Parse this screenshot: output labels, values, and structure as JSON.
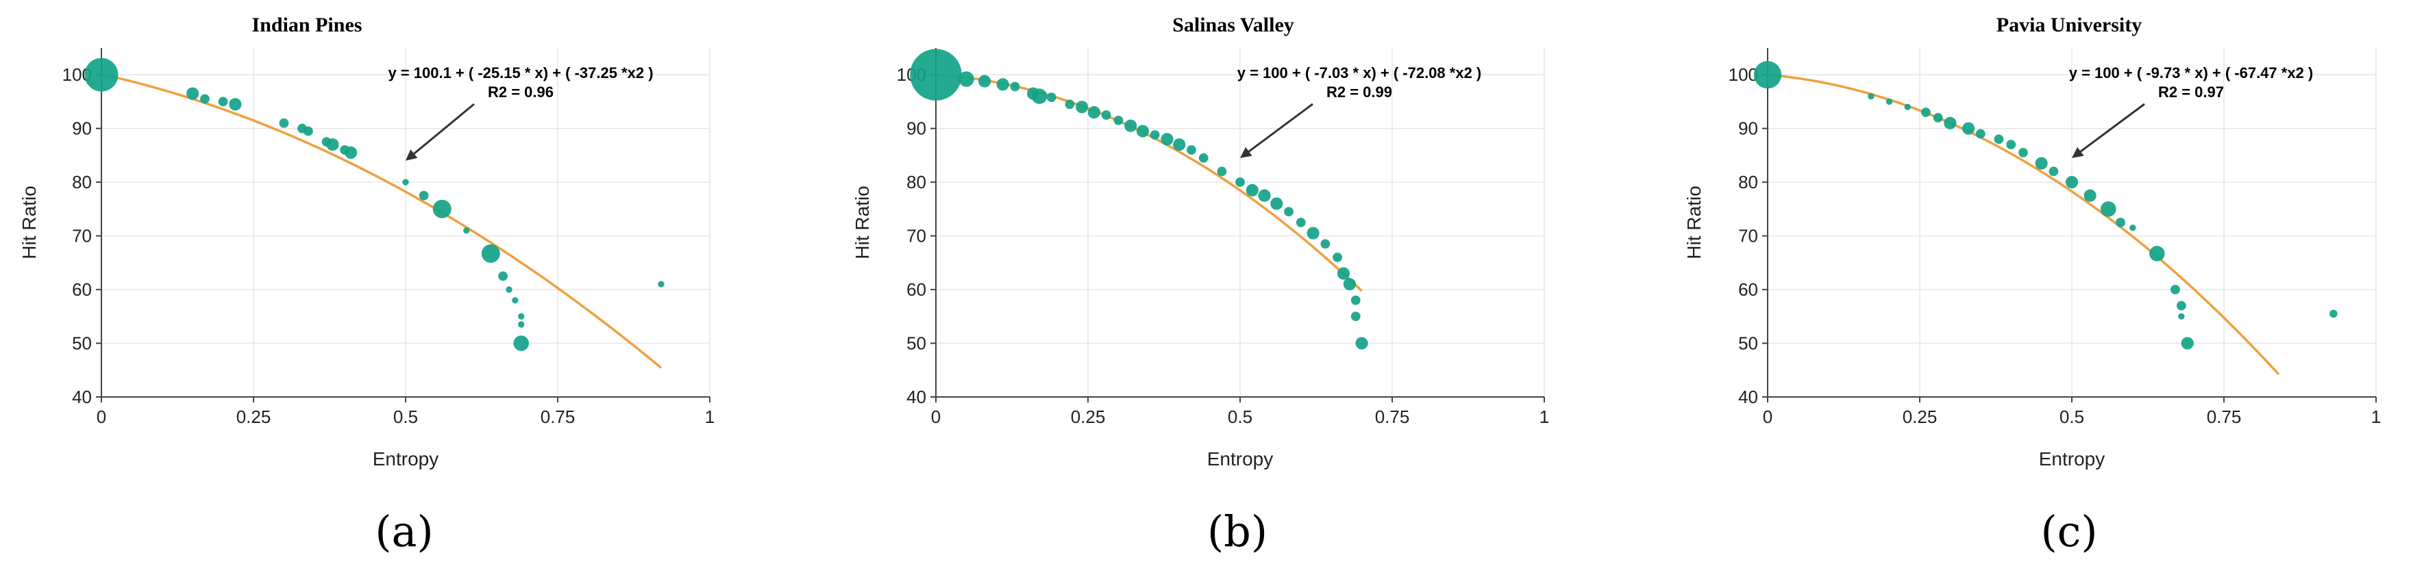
{
  "colors": {
    "point": "#12a388",
    "fit": "#f0a040",
    "grid": "#e6e6e6",
    "axis": "#444444",
    "arrow": "#333333"
  },
  "chart_data": [
    {
      "type": "scatter",
      "panel_label": "(a)",
      "title": "Indian Pines",
      "equation": "y = 100.1 + ( -25.15 * x) + ( -37.25 *x2 )",
      "r2": "R2 = 0.96",
      "xlabel": "Entropy",
      "ylabel": "Hit Ratio",
      "xlim": [
        0,
        1
      ],
      "ylim": [
        40,
        105
      ],
      "xticks": [
        0,
        0.25,
        0.5,
        0.75,
        1
      ],
      "xtick_labels": [
        "0",
        "0.25",
        "0.5",
        "0.75",
        "1"
      ],
      "yticks": [
        40,
        50,
        60,
        70,
        80,
        90,
        100
      ],
      "ytick_labels": [
        "40",
        "50",
        "60",
        "70",
        "80",
        "90",
        "100"
      ],
      "grid": true,
      "fit": {
        "coef": [
          100.1,
          -25.15,
          -37.25
        ],
        "x_range": [
          0,
          0.92
        ]
      },
      "annotation_arrow_to": {
        "x": 0.5,
        "y": 84
      },
      "points": [
        {
          "x": 0.0,
          "y": 100,
          "size": 10
        },
        {
          "x": 0.15,
          "y": 96.5,
          "size": 3
        },
        {
          "x": 0.17,
          "y": 95.5,
          "size": 2
        },
        {
          "x": 0.2,
          "y": 95,
          "size": 2
        },
        {
          "x": 0.22,
          "y": 94.5,
          "size": 3
        },
        {
          "x": 0.3,
          "y": 91,
          "size": 2
        },
        {
          "x": 0.33,
          "y": 90,
          "size": 2
        },
        {
          "x": 0.34,
          "y": 89.5,
          "size": 2
        },
        {
          "x": 0.37,
          "y": 87.5,
          "size": 2
        },
        {
          "x": 0.38,
          "y": 87,
          "size": 3
        },
        {
          "x": 0.4,
          "y": 86,
          "size": 2
        },
        {
          "x": 0.41,
          "y": 85.5,
          "size": 3
        },
        {
          "x": 0.5,
          "y": 80,
          "size": 1
        },
        {
          "x": 0.53,
          "y": 77.5,
          "size": 2
        },
        {
          "x": 0.56,
          "y": 75,
          "size": 5
        },
        {
          "x": 0.6,
          "y": 71,
          "size": 1
        },
        {
          "x": 0.64,
          "y": 66.7,
          "size": 5
        },
        {
          "x": 0.66,
          "y": 62.5,
          "size": 2
        },
        {
          "x": 0.67,
          "y": 60,
          "size": 1
        },
        {
          "x": 0.68,
          "y": 58,
          "size": 1
        },
        {
          "x": 0.69,
          "y": 55,
          "size": 1
        },
        {
          "x": 0.69,
          "y": 53.5,
          "size": 1
        },
        {
          "x": 0.69,
          "y": 50,
          "size": 4
        },
        {
          "x": 0.92,
          "y": 61,
          "size": 1
        }
      ]
    },
    {
      "type": "scatter",
      "panel_label": "(b)",
      "title": "Salinas Valley",
      "equation": "y = 100 + ( -7.03 * x) + ( -72.08 *x2 )",
      "r2": "R2 = 0.99",
      "xlabel": "Entropy",
      "ylabel": "Hit Ratio",
      "xlim": [
        0,
        1
      ],
      "ylim": [
        40,
        105
      ],
      "xticks": [
        0,
        0.25,
        0.5,
        0.75,
        1
      ],
      "xtick_labels": [
        "0",
        "0.25",
        "0.5",
        "0.75",
        "1"
      ],
      "yticks": [
        40,
        50,
        60,
        70,
        80,
        90,
        100
      ],
      "ytick_labels": [
        "40",
        "50",
        "60",
        "70",
        "80",
        "90",
        "100"
      ],
      "grid": true,
      "fit": {
        "coef": [
          100,
          -7.03,
          -72.08
        ],
        "x_range": [
          0,
          0.7
        ]
      },
      "annotation_arrow_to": {
        "x": 0.5,
        "y": 84.5
      },
      "points": [
        {
          "x": 0.0,
          "y": 100,
          "size": 16
        },
        {
          "x": 0.05,
          "y": 99.2,
          "size": 4
        },
        {
          "x": 0.08,
          "y": 98.8,
          "size": 3
        },
        {
          "x": 0.11,
          "y": 98.2,
          "size": 3
        },
        {
          "x": 0.13,
          "y": 97.8,
          "size": 2
        },
        {
          "x": 0.16,
          "y": 96.5,
          "size": 3
        },
        {
          "x": 0.17,
          "y": 96,
          "size": 4
        },
        {
          "x": 0.19,
          "y": 95.8,
          "size": 2
        },
        {
          "x": 0.22,
          "y": 94.5,
          "size": 2
        },
        {
          "x": 0.24,
          "y": 94,
          "size": 3
        },
        {
          "x": 0.26,
          "y": 93,
          "size": 3
        },
        {
          "x": 0.28,
          "y": 92.5,
          "size": 2
        },
        {
          "x": 0.3,
          "y": 91.5,
          "size": 2
        },
        {
          "x": 0.32,
          "y": 90.5,
          "size": 3
        },
        {
          "x": 0.34,
          "y": 89.5,
          "size": 3
        },
        {
          "x": 0.36,
          "y": 88.8,
          "size": 2
        },
        {
          "x": 0.38,
          "y": 88,
          "size": 3
        },
        {
          "x": 0.4,
          "y": 87,
          "size": 3
        },
        {
          "x": 0.42,
          "y": 86,
          "size": 2
        },
        {
          "x": 0.44,
          "y": 84.5,
          "size": 2
        },
        {
          "x": 0.47,
          "y": 82,
          "size": 2
        },
        {
          "x": 0.5,
          "y": 80,
          "size": 2
        },
        {
          "x": 0.52,
          "y": 78.5,
          "size": 3
        },
        {
          "x": 0.54,
          "y": 77.5,
          "size": 3
        },
        {
          "x": 0.56,
          "y": 76,
          "size": 3
        },
        {
          "x": 0.58,
          "y": 74.5,
          "size": 2
        },
        {
          "x": 0.6,
          "y": 72.5,
          "size": 2
        },
        {
          "x": 0.62,
          "y": 70.5,
          "size": 3
        },
        {
          "x": 0.64,
          "y": 68.5,
          "size": 2
        },
        {
          "x": 0.66,
          "y": 66,
          "size": 2
        },
        {
          "x": 0.67,
          "y": 63,
          "size": 3
        },
        {
          "x": 0.68,
          "y": 61,
          "size": 3
        },
        {
          "x": 0.69,
          "y": 58,
          "size": 2
        },
        {
          "x": 0.69,
          "y": 55,
          "size": 2
        },
        {
          "x": 0.7,
          "y": 50,
          "size": 3
        }
      ]
    },
    {
      "type": "scatter",
      "panel_label": "(c)",
      "title": "Pavia University",
      "equation": "y = 100 + ( -9.73 * x) + ( -67.47 *x2 )",
      "r2": "R2 = 0.97",
      "xlabel": "Entropy",
      "ylabel": "Hit Ratio",
      "xlim": [
        0,
        1
      ],
      "ylim": [
        40,
        105
      ],
      "xticks": [
        0,
        0.25,
        0.5,
        0.75,
        1
      ],
      "xtick_labels": [
        "0",
        "0.25",
        "0.5",
        "0.75",
        "1"
      ],
      "yticks": [
        40,
        50,
        60,
        70,
        80,
        90,
        100
      ],
      "ytick_labels": [
        "40",
        "50",
        "60",
        "70",
        "80",
        "90",
        "100"
      ],
      "grid": true,
      "fit": {
        "coef": [
          100,
          -9.73,
          -67.47
        ],
        "x_range": [
          0,
          0.84
        ]
      },
      "annotation_arrow_to": {
        "x": 0.5,
        "y": 84.5
      },
      "points": [
        {
          "x": 0.0,
          "y": 100,
          "size": 8
        },
        {
          "x": 0.17,
          "y": 96,
          "size": 1
        },
        {
          "x": 0.2,
          "y": 95,
          "size": 1
        },
        {
          "x": 0.23,
          "y": 94,
          "size": 1
        },
        {
          "x": 0.26,
          "y": 93,
          "size": 2
        },
        {
          "x": 0.28,
          "y": 92,
          "size": 2
        },
        {
          "x": 0.3,
          "y": 91,
          "size": 3
        },
        {
          "x": 0.33,
          "y": 90,
          "size": 3
        },
        {
          "x": 0.35,
          "y": 89,
          "size": 2
        },
        {
          "x": 0.38,
          "y": 88,
          "size": 2
        },
        {
          "x": 0.4,
          "y": 87,
          "size": 2
        },
        {
          "x": 0.42,
          "y": 85.5,
          "size": 2
        },
        {
          "x": 0.45,
          "y": 83.5,
          "size": 3
        },
        {
          "x": 0.47,
          "y": 82,
          "size": 2
        },
        {
          "x": 0.5,
          "y": 80,
          "size": 3
        },
        {
          "x": 0.53,
          "y": 77.5,
          "size": 3
        },
        {
          "x": 0.56,
          "y": 75,
          "size": 4
        },
        {
          "x": 0.58,
          "y": 72.5,
          "size": 2
        },
        {
          "x": 0.6,
          "y": 71.5,
          "size": 1
        },
        {
          "x": 0.64,
          "y": 66.7,
          "size": 4
        },
        {
          "x": 0.67,
          "y": 60,
          "size": 2
        },
        {
          "x": 0.68,
          "y": 57,
          "size": 2
        },
        {
          "x": 0.68,
          "y": 55,
          "size": 1
        },
        {
          "x": 0.69,
          "y": 50,
          "size": 3
        },
        {
          "x": 0.93,
          "y": 55.5,
          "size": 1.5
        }
      ]
    }
  ]
}
